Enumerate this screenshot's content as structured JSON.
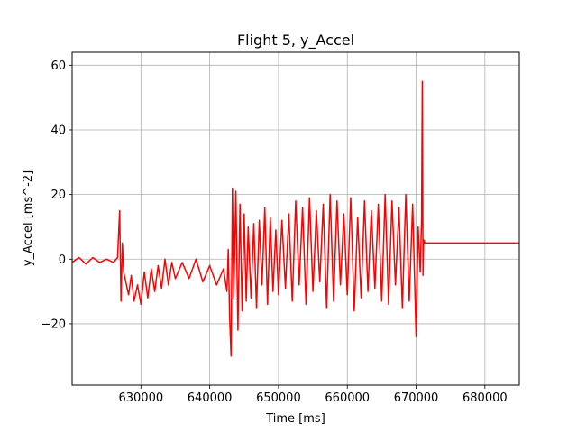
{
  "chart_data": {
    "type": "line",
    "title": "Flight 5, y_Accel",
    "xlabel": "Time [ms]",
    "ylabel": "y_Accel [ms^-2]",
    "xlim": [
      620000,
      685000
    ],
    "ylim": [
      -39,
      64
    ],
    "xticks": [
      630000,
      640000,
      650000,
      660000,
      670000,
      680000
    ],
    "xtick_labels": [
      "630000",
      "640000",
      "650000",
      "660000",
      "670000",
      "680000"
    ],
    "yticks": [
      -20,
      0,
      20,
      40,
      60
    ],
    "ytick_labels": [
      "−20",
      "0",
      "20",
      "40",
      "60"
    ],
    "grid": true,
    "series": [
      {
        "color": "#ff0000",
        "x": [
          620000,
          621000,
          622000,
          623000,
          624000,
          625000,
          626000,
          626600,
          626900,
          627100,
          627300,
          627500,
          627800,
          628200,
          628600,
          629000,
          629500,
          630000,
          630500,
          631000,
          631500,
          632000,
          632500,
          633000,
          633500,
          634000,
          634500,
          635000,
          636000,
          637000,
          638000,
          639000,
          640000,
          641000,
          642000,
          642500,
          642700,
          642900,
          643100,
          643300,
          643500,
          643800,
          644100,
          644400,
          644700,
          645000,
          645300,
          645600,
          646000,
          646400,
          646800,
          647200,
          647600,
          648000,
          648400,
          648800,
          649200,
          649600,
          650000,
          650500,
          651000,
          651500,
          652000,
          652500,
          653000,
          653500,
          654000,
          654500,
          655000,
          655500,
          656000,
          656500,
          657000,
          657500,
          658000,
          658500,
          659000,
          659500,
          660000,
          660500,
          661000,
          661500,
          662000,
          662500,
          663000,
          663500,
          664000,
          664500,
          665000,
          665500,
          666000,
          666500,
          667000,
          667500,
          668000,
          668500,
          669000,
          669500,
          670000,
          670300,
          670600,
          670800,
          670900,
          671000,
          671100,
          671300,
          672000,
          675000,
          680000,
          685000
        ],
        "values": [
          -1,
          0.5,
          -1.5,
          0.5,
          -1,
          0,
          -1,
          0.5,
          15,
          -13,
          5,
          -4,
          -7,
          -11,
          -5,
          -13,
          -8,
          -14,
          -4,
          -12,
          -3,
          -10,
          -2,
          -9,
          0,
          -8,
          -1,
          -6,
          -1,
          -6,
          0,
          -7,
          -2,
          -8,
          -3,
          -10,
          3,
          -18,
          -30,
          22,
          -12,
          21,
          -22,
          17,
          -16,
          14,
          -13,
          10,
          -12,
          11,
          -15,
          12,
          -8,
          16,
          -14,
          13,
          -10,
          9,
          -11,
          12,
          -9,
          14,
          -13,
          18,
          -8,
          16,
          -14,
          19,
          -10,
          15,
          -7,
          17,
          -15,
          20,
          -13,
          18,
          -8,
          14,
          -11,
          19,
          -16,
          13,
          -12,
          18,
          -10,
          15,
          -9,
          17,
          -13,
          20,
          -14,
          18,
          -8,
          16,
          -15,
          20,
          -13,
          17,
          -24,
          10,
          -4,
          12,
          55,
          -5,
          6,
          5,
          5,
          5,
          5,
          5
        ]
      }
    ]
  }
}
